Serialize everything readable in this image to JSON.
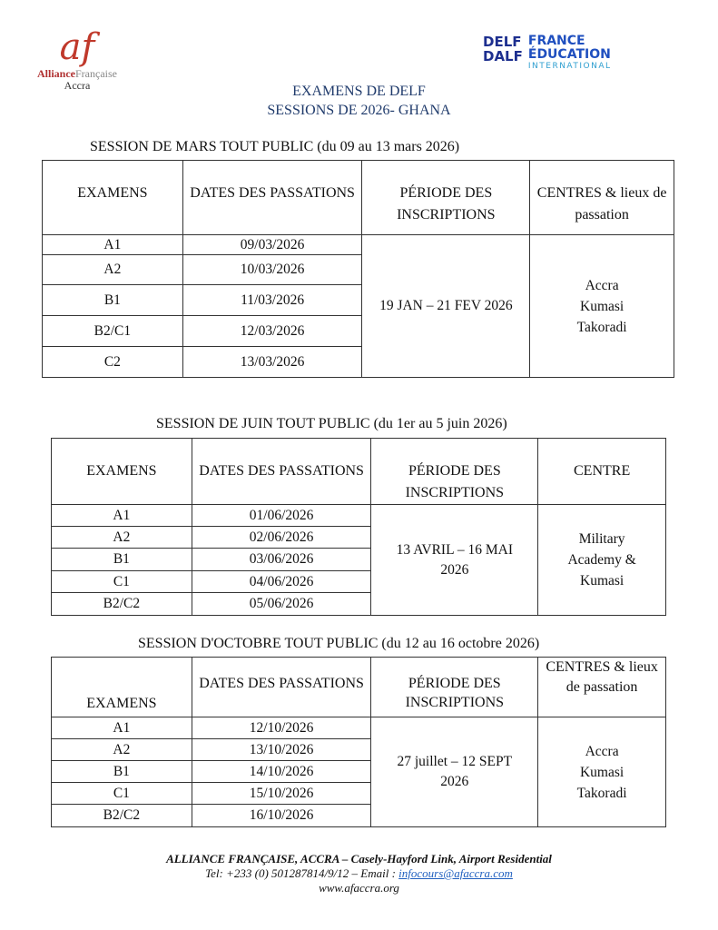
{
  "header": {
    "left_logo": {
      "mark": "af",
      "name_a": "Alliance",
      "name_b": "Française",
      "city": "Accra"
    },
    "right_logo": {
      "line1": "DELF",
      "line2": "DALF",
      "org1": "FRANCE",
      "org2": "ÉDUCATION",
      "org3": "INTERNATIONAL"
    },
    "title1": "EXAMENS DE DELF",
    "title2": "SESSIONS DE 2026- GHANA"
  },
  "columns_common": {
    "exams": "EXAMENS",
    "dates": "DATES DES PASSATIONS",
    "period": "PÉRIODE DES INSCRIPTIONS"
  },
  "sessions": [
    {
      "title": "SESSION DE MARS TOUT PUBLIC (du 09 au 13 mars 2026)",
      "centre_header": "CENTRES & lieux de passation",
      "rows": [
        {
          "exam": "A1",
          "date": "09/03/2026"
        },
        {
          "exam": "A2",
          "date": "10/03/2026"
        },
        {
          "exam": "B1",
          "date": "11/03/2026"
        },
        {
          "exam": "B2/C1",
          "date": "12/03/2026"
        },
        {
          "exam": "C2",
          "date": "13/03/2026"
        }
      ],
      "period": "19 JAN – 21 FEV 2026",
      "centres": [
        "Accra",
        "Kumasi",
        "Takoradi"
      ]
    },
    {
      "title": "SESSION DE JUIN TOUT PUBLIC (du 1er au 5 juin 2026)",
      "centre_header": "CENTRE",
      "rows": [
        {
          "exam": "A1",
          "date": "01/06/2026"
        },
        {
          "exam": "A2",
          "date": "02/06/2026"
        },
        {
          "exam": "B1",
          "date": "03/06/2026"
        },
        {
          "exam": "C1",
          "date": "04/06/2026"
        },
        {
          "exam": "B2/C2",
          "date": "05/06/2026"
        }
      ],
      "period": "13 AVRIL – 16 MAI 2026",
      "centres": [
        "Military",
        "Academy &",
        "Kumasi"
      ]
    },
    {
      "title": "SESSION D'OCTOBRE TOUT PUBLIC (du 12 au 16 octobre 2026)",
      "centre_header": "CENTRES & lieux de passation",
      "rows": [
        {
          "exam": "A1",
          "date": "12/10/2026"
        },
        {
          "exam": "A2",
          "date": "13/10/2026"
        },
        {
          "exam": "B1",
          "date": "14/10/2026"
        },
        {
          "exam": "C1",
          "date": "15/10/2026"
        },
        {
          "exam": "B2/C2",
          "date": "16/10/2026"
        }
      ],
      "period": "27 juillet – 12 SEPT 2026",
      "centres": [
        "Accra",
        "Kumasi",
        "Takoradi"
      ]
    }
  ],
  "footer": {
    "line1": "ALLIANCE FRANÇAISE, ACCRA – Casely-Hayford Link, Airport Residential",
    "line2_prefix": "Tel: +233 (0) 501287814/9/12 – Email : ",
    "email": "infocours@afaccra.com",
    "website": "www.afaccra.org"
  }
}
